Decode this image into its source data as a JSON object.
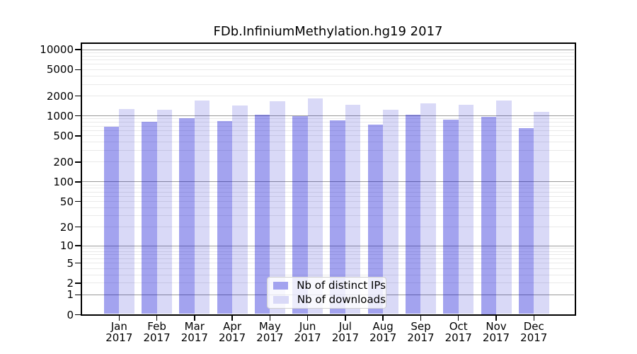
{
  "chart_data": {
    "type": "bar",
    "title": "FDb.InfiniumMethylation.hg19 2017",
    "categories": [
      "Jan",
      "Feb",
      "Mar",
      "Apr",
      "May",
      "Jun",
      "Jul",
      "Aug",
      "Sep",
      "Oct",
      "Nov",
      "Dec"
    ],
    "category_year": "2017",
    "series": [
      {
        "name": "Nb of distinct IPs",
        "values": [
          685,
          810,
          930,
          840,
          1040,
          985,
          845,
          745,
          1030,
          875,
          975,
          660
        ],
        "bar_color": "rgba(0,0,210,0.36)",
        "swatch_color": "#a3a3ef"
      },
      {
        "name": "Nb of downloads",
        "values": [
          1270,
          1240,
          1705,
          1425,
          1675,
          1825,
          1470,
          1230,
          1535,
          1470,
          1710,
          1150
        ],
        "bar_color": "rgba(0,0,200,0.15)",
        "swatch_color": "#d9d9f7"
      }
    ],
    "y_axis": {
      "scale": "log10(1+y)",
      "ticks": [
        0,
        1,
        2,
        5,
        10,
        20,
        50,
        100,
        200,
        500,
        1000,
        2000,
        5000,
        10000
      ],
      "major_grid_values": [
        1,
        10,
        100,
        1000,
        10000
      ],
      "ylim": [
        0,
        12800
      ]
    },
    "xlabel": "",
    "ylabel": "",
    "grid": true,
    "legend_position": "lower center"
  },
  "colors": {
    "major_grid": "#9b9b9b",
    "minor_grid": "#e9e9e9",
    "spine": "#000000",
    "text": "#000000",
    "background": "#ffffff"
  }
}
